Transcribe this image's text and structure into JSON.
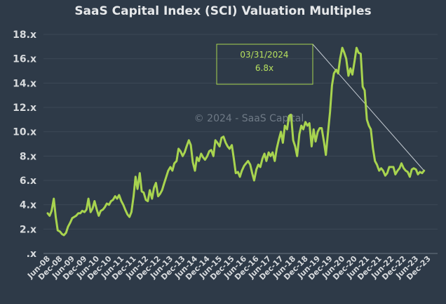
{
  "chart_data": {
    "type": "line",
    "title": "SaaS Capital Index (SCI) Valuation Multiples",
    "watermark": "© 2024 - SaaS Capital",
    "ylim": [
      0,
      18
    ],
    "y_ticks": [
      ".x",
      "2.x",
      "4.x",
      "6.x",
      "8.x",
      "10.x",
      "12.x",
      "14.x",
      "16.x",
      "18.x"
    ],
    "x_ticks": [
      "Jun-08",
      "Dec-08",
      "Jun-09",
      "Dec-09",
      "Jun-10",
      "Dec-10",
      "Jun-11",
      "Dec-11",
      "Jun-12",
      "Dec-12",
      "Jun-13",
      "Dec-13",
      "Jun-14",
      "Dec-14",
      "Jun-15",
      "Dec-15",
      "Jun-16",
      "Dec-16",
      "Jun-17",
      "Dec-17",
      "Jun-18",
      "Dec-18",
      "Jun-19",
      "Dec-19",
      "Jun-20",
      "Dec-20",
      "Jun-21",
      "Dec-21",
      "Jun-22",
      "Dec-22",
      "Jun-23",
      "Dec-23"
    ],
    "series": [
      {
        "color": "#a8d44f",
        "values": [
          [
            2008.42,
            3.3
          ],
          [
            2008.5,
            3.1
          ],
          [
            2008.58,
            3.5
          ],
          [
            2008.67,
            4.5
          ],
          [
            2008.75,
            3.0
          ],
          [
            2008.83,
            1.9
          ],
          [
            2008.92,
            1.8
          ],
          [
            2009.0,
            1.6
          ],
          [
            2009.08,
            1.5
          ],
          [
            2009.17,
            1.7
          ],
          [
            2009.25,
            2.2
          ],
          [
            2009.33,
            2.5
          ],
          [
            2009.42,
            2.9
          ],
          [
            2009.5,
            3.0
          ],
          [
            2009.58,
            3.1
          ],
          [
            2009.67,
            3.3
          ],
          [
            2009.75,
            3.3
          ],
          [
            2009.83,
            3.5
          ],
          [
            2009.92,
            3.4
          ],
          [
            2010.0,
            3.6
          ],
          [
            2010.08,
            4.5
          ],
          [
            2010.17,
            3.4
          ],
          [
            2010.25,
            3.7
          ],
          [
            2010.33,
            4.3
          ],
          [
            2010.42,
            3.6
          ],
          [
            2010.5,
            3.1
          ],
          [
            2010.58,
            3.5
          ],
          [
            2010.67,
            3.6
          ],
          [
            2010.75,
            3.8
          ],
          [
            2010.83,
            4.1
          ],
          [
            2010.92,
            4.0
          ],
          [
            2011.0,
            4.3
          ],
          [
            2011.08,
            4.4
          ],
          [
            2011.17,
            4.7
          ],
          [
            2011.25,
            4.5
          ],
          [
            2011.33,
            4.8
          ],
          [
            2011.42,
            4.3
          ],
          [
            2011.5,
            4.0
          ],
          [
            2011.58,
            3.6
          ],
          [
            2011.67,
            3.2
          ],
          [
            2011.75,
            3.0
          ],
          [
            2011.83,
            3.4
          ],
          [
            2011.92,
            4.7
          ],
          [
            2012.0,
            6.3
          ],
          [
            2012.08,
            5.3
          ],
          [
            2012.17,
            6.6
          ],
          [
            2012.25,
            5.1
          ],
          [
            2012.33,
            5.0
          ],
          [
            2012.42,
            4.4
          ],
          [
            2012.5,
            4.3
          ],
          [
            2012.58,
            5.2
          ],
          [
            2012.67,
            4.5
          ],
          [
            2012.75,
            5.4
          ],
          [
            2012.83,
            5.8
          ],
          [
            2012.92,
            4.7
          ],
          [
            2013.0,
            4.9
          ],
          [
            2013.08,
            5.2
          ],
          [
            2013.17,
            5.8
          ],
          [
            2013.25,
            6.3
          ],
          [
            2013.33,
            6.8
          ],
          [
            2013.42,
            7.1
          ],
          [
            2013.5,
            6.8
          ],
          [
            2013.58,
            7.4
          ],
          [
            2013.67,
            7.6
          ],
          [
            2013.75,
            8.6
          ],
          [
            2013.83,
            8.4
          ],
          [
            2013.92,
            8.0
          ],
          [
            2014.0,
            8.3
          ],
          [
            2014.08,
            8.8
          ],
          [
            2014.17,
            9.3
          ],
          [
            2014.25,
            8.9
          ],
          [
            2014.33,
            7.5
          ],
          [
            2014.42,
            6.8
          ],
          [
            2014.5,
            7.9
          ],
          [
            2014.58,
            7.6
          ],
          [
            2014.67,
            8.2
          ],
          [
            2014.75,
            7.9
          ],
          [
            2014.83,
            7.7
          ],
          [
            2014.92,
            8.0
          ],
          [
            2015.0,
            8.4
          ],
          [
            2015.08,
            8.5
          ],
          [
            2015.17,
            8.0
          ],
          [
            2015.25,
            9.3
          ],
          [
            2015.33,
            9.1
          ],
          [
            2015.42,
            8.8
          ],
          [
            2015.5,
            9.5
          ],
          [
            2015.58,
            9.6
          ],
          [
            2015.67,
            9.1
          ],
          [
            2015.75,
            8.8
          ],
          [
            2015.83,
            8.6
          ],
          [
            2015.92,
            8.9
          ],
          [
            2016.0,
            7.8
          ],
          [
            2016.08,
            6.6
          ],
          [
            2016.17,
            6.7
          ],
          [
            2016.25,
            6.3
          ],
          [
            2016.33,
            6.8
          ],
          [
            2016.42,
            7.2
          ],
          [
            2016.5,
            7.4
          ],
          [
            2016.58,
            7.6
          ],
          [
            2016.67,
            7.3
          ],
          [
            2016.75,
            6.6
          ],
          [
            2016.83,
            6.0
          ],
          [
            2016.92,
            6.9
          ],
          [
            2017.0,
            7.3
          ],
          [
            2017.08,
            7.1
          ],
          [
            2017.17,
            7.8
          ],
          [
            2017.25,
            8.2
          ],
          [
            2017.33,
            7.6
          ],
          [
            2017.42,
            8.3
          ],
          [
            2017.5,
            8.0
          ],
          [
            2017.58,
            8.3
          ],
          [
            2017.67,
            7.6
          ],
          [
            2017.75,
            8.6
          ],
          [
            2017.83,
            9.3
          ],
          [
            2017.92,
            10.0
          ],
          [
            2018.0,
            9.1
          ],
          [
            2018.08,
            10.5
          ],
          [
            2018.17,
            10.2
          ],
          [
            2018.25,
            11.3
          ],
          [
            2018.33,
            11.4
          ],
          [
            2018.42,
            9.3
          ],
          [
            2018.5,
            8.8
          ],
          [
            2018.58,
            8.0
          ],
          [
            2018.67,
            9.8
          ],
          [
            2018.75,
            10.5
          ],
          [
            2018.83,
            10.2
          ],
          [
            2018.92,
            10.8
          ],
          [
            2019.0,
            10.5
          ],
          [
            2019.08,
            10.7
          ],
          [
            2019.17,
            8.8
          ],
          [
            2019.25,
            10.2
          ],
          [
            2019.33,
            9.2
          ],
          [
            2019.42,
            10.0
          ],
          [
            2019.5,
            10.3
          ],
          [
            2019.58,
            10.3
          ],
          [
            2019.67,
            9.2
          ],
          [
            2019.75,
            8.1
          ],
          [
            2019.83,
            9.8
          ],
          [
            2019.92,
            11.6
          ],
          [
            2020.0,
            13.8
          ],
          [
            2020.08,
            14.8
          ],
          [
            2020.17,
            15.1
          ],
          [
            2020.25,
            14.8
          ],
          [
            2020.33,
            16.0
          ],
          [
            2020.42,
            16.9
          ],
          [
            2020.5,
            16.5
          ],
          [
            2020.58,
            16.0
          ],
          [
            2020.67,
            14.6
          ],
          [
            2020.75,
            15.2
          ],
          [
            2020.83,
            14.7
          ],
          [
            2020.92,
            15.8
          ],
          [
            2021.0,
            16.9
          ],
          [
            2021.08,
            16.5
          ],
          [
            2021.17,
            16.4
          ],
          [
            2021.25,
            13.7
          ],
          [
            2021.33,
            13.4
          ],
          [
            2021.42,
            11.0
          ],
          [
            2021.5,
            10.5
          ],
          [
            2021.58,
            10.2
          ],
          [
            2021.67,
            8.6
          ],
          [
            2021.75,
            7.6
          ],
          [
            2021.83,
            7.3
          ],
          [
            2021.92,
            6.8
          ],
          [
            2022.0,
            7.0
          ],
          [
            2022.08,
            6.8
          ],
          [
            2022.17,
            6.4
          ],
          [
            2022.25,
            6.6
          ],
          [
            2022.33,
            7.1
          ],
          [
            2022.42,
            7.1
          ],
          [
            2022.5,
            7.1
          ],
          [
            2022.58,
            6.5
          ],
          [
            2022.67,
            6.8
          ],
          [
            2022.75,
            7.0
          ],
          [
            2022.83,
            7.4
          ],
          [
            2022.92,
            7.0
          ],
          [
            2023.0,
            6.8
          ],
          [
            2023.08,
            6.7
          ],
          [
            2023.17,
            6.3
          ],
          [
            2023.25,
            6.9
          ],
          [
            2023.33,
            7.0
          ],
          [
            2023.42,
            6.9
          ],
          [
            2023.5,
            6.5
          ],
          [
            2023.58,
            6.7
          ],
          [
            2023.67,
            6.6
          ],
          [
            2023.75,
            6.8
          ]
        ]
      }
    ],
    "annotation": {
      "date": "03/31/2024",
      "value": "6.8x"
    }
  }
}
